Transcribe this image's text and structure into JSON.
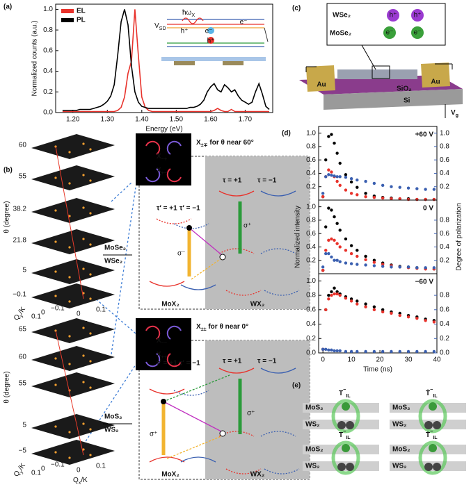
{
  "chart_data": [
    {
      "type": "line",
      "panel": "(a)",
      "xlabel": "Energy (eV)",
      "ylabel": "Normalized counts (a.u.)",
      "legend": "upper left",
      "xlim": [
        1.15,
        1.78
      ],
      "xticks": [
        {
          "value": 1.2,
          "label": "1.20"
        },
        {
          "value": 1.3,
          "label": "1.30"
        },
        {
          "value": 1.4,
          "label": "1.40"
        },
        {
          "value": 1.5,
          "label": "1.50"
        },
        {
          "value": 1.6,
          "label": "1.60"
        },
        {
          "value": 1.7,
          "label": "1.70"
        }
      ],
      "ylim": [
        0,
        1.05
      ],
      "yticks": [
        {
          "value": 0,
          "label": "0.0"
        },
        {
          "value": 0.2,
          "label": "0.2"
        },
        {
          "value": 0.4,
          "label": "0.4"
        },
        {
          "value": 0.6,
          "label": "0.6"
        },
        {
          "value": 0.8,
          "label": "0.8"
        },
        {
          "value": 1,
          "label": "1.0"
        }
      ],
      "x": [
        1.17,
        1.18,
        1.19,
        1.2,
        1.21,
        1.22,
        1.23,
        1.24,
        1.25,
        1.26,
        1.27,
        1.28,
        1.29,
        1.3,
        1.31,
        1.32,
        1.33,
        1.34,
        1.35,
        1.36,
        1.37,
        1.38,
        1.39,
        1.4,
        1.41,
        1.42,
        1.43,
        1.44,
        1.45,
        1.46,
        1.47,
        1.48,
        1.49,
        1.5,
        1.51,
        1.52,
        1.53,
        1.54,
        1.55,
        1.56,
        1.57,
        1.58,
        1.59,
        1.6,
        1.61,
        1.62,
        1.63,
        1.64,
        1.65,
        1.66,
        1.67,
        1.68,
        1.69,
        1.7,
        1.71,
        1.72,
        1.73,
        1.74,
        1.75,
        1.76,
        1.77
      ],
      "series": [
        {
          "name": "EL",
          "color": "#e8322b",
          "values": [
            0.01,
            0.01,
            0.01,
            0.01,
            0.01,
            0.01,
            0.01,
            0.01,
            0.01,
            0.01,
            0.01,
            0.01,
            0.01,
            0.01,
            0.01,
            0.01,
            0.02,
            0.05,
            0.15,
            0.38,
            0.5,
            1.0,
            0.55,
            0.15,
            0.05,
            0.02,
            0.01,
            0.01,
            0.01,
            0.01,
            0.01,
            0.01,
            0.01,
            0.01,
            0.01,
            0.01,
            0.01,
            0.01,
            0.01,
            0.01,
            0.01,
            0.01,
            0.01,
            0.01,
            0.02,
            0.04,
            0.02,
            0.01,
            0.01,
            0.03,
            0.01,
            0.01,
            0.01,
            0.01,
            0.01,
            0.01,
            0.01,
            0.01,
            0.01,
            0.01,
            0.01
          ]
        },
        {
          "name": "PL",
          "color": "#000000",
          "values": [
            0.02,
            0.02,
            0.02,
            0.02,
            0.02,
            0.03,
            0.03,
            0.03,
            0.03,
            0.04,
            0.05,
            0.06,
            0.08,
            0.11,
            0.16,
            0.27,
            0.55,
            0.88,
            1.0,
            0.85,
            0.45,
            0.2,
            0.1,
            0.06,
            0.05,
            0.04,
            0.04,
            0.04,
            0.04,
            0.04,
            0.04,
            0.04,
            0.04,
            0.04,
            0.04,
            0.04,
            0.04,
            0.05,
            0.05,
            0.06,
            0.08,
            0.12,
            0.2,
            0.25,
            0.28,
            0.22,
            0.2,
            0.27,
            0.24,
            0.2,
            0.22,
            0.16,
            0.12,
            0.1,
            0.08,
            0.1,
            0.2,
            0.28,
            0.18,
            0.06,
            0.03
          ]
        }
      ]
    },
    {
      "type": "scatter",
      "panel": "(d)",
      "annotation": "+60 V",
      "xlim": [
        -1.5,
        40
      ],
      "ylim": [
        0,
        1.1
      ],
      "y2lim": [
        0,
        1.1
      ],
      "y2_color": "#3a5fb0",
      "yticks": [
        {
          "value": 0.2,
          "label": "0.2"
        },
        {
          "value": 0.4,
          "label": "0.4"
        },
        {
          "value": 0.6,
          "label": "0.6"
        },
        {
          "value": 0.8,
          "label": "0.8"
        },
        {
          "value": 1,
          "label": "1.0"
        }
      ],
      "y2ticks": [
        {
          "value": 0.2,
          "label": "0.2"
        },
        {
          "value": 0.4,
          "label": "0.4"
        },
        {
          "value": 0.6,
          "label": "0.6"
        },
        {
          "value": 0.8,
          "label": "0.8"
        },
        {
          "value": 1,
          "label": "1.0"
        }
      ],
      "x": [
        0,
        1,
        2,
        3,
        4,
        5,
        6,
        8,
        10,
        12,
        15,
        18,
        21,
        24,
        27,
        30,
        33,
        36,
        39
      ],
      "series": [
        {
          "color": "#000000",
          "values": [
            0.05,
            0.6,
            0.95,
            0.98,
            0.85,
            0.7,
            0.55,
            0.38,
            0.27,
            0.19,
            0.1,
            0.06,
            0.04,
            0.03,
            0.02,
            0.02,
            0.01,
            0.01,
            0.01
          ]
        },
        {
          "color": "#e8322b",
          "values": [
            0.05,
            0.35,
            0.45,
            0.42,
            0.35,
            0.28,
            0.22,
            0.15,
            0.1,
            0.08,
            0.05,
            0.04,
            0.03,
            0.02,
            0.02,
            0.01,
            0.01,
            0.01,
            0.01
          ]
        },
        {
          "color": "#3a5fb0",
          "axis": "y2",
          "values": [
            0.1,
            0.35,
            0.38,
            0.37,
            0.36,
            0.35,
            0.35,
            0.34,
            0.32,
            0.3,
            0.28,
            0.25,
            0.22,
            0.2,
            0.19,
            0.18,
            0.17,
            0.16,
            0.16
          ]
        }
      ]
    },
    {
      "type": "scatter",
      "annotation": "0 V",
      "ylabel": "Normalized intensity",
      "y2label": "Degree of polarization",
      "xlim": [
        -1.5,
        40
      ],
      "ylim": [
        0,
        1.1
      ],
      "y2lim": [
        0,
        1.1
      ],
      "y2_color": "#3a5fb0",
      "yticks": [
        {
          "value": 0.2,
          "label": "0.2"
        },
        {
          "value": 0.4,
          "label": "0.4"
        },
        {
          "value": 0.6,
          "label": "0.6"
        },
        {
          "value": 0.8,
          "label": "0.8"
        },
        {
          "value": 1,
          "label": "1.0"
        }
      ],
      "y2ticks": [
        {
          "value": 0.2,
          "label": "0.2"
        },
        {
          "value": 0.4,
          "label": "0.4"
        },
        {
          "value": 0.6,
          "label": "0.6"
        },
        {
          "value": 0.8,
          "label": "0.8"
        }
      ],
      "x": [
        0,
        1,
        2,
        3,
        4,
        5,
        6,
        8,
        10,
        12,
        15,
        18,
        21,
        24,
        27,
        30,
        33,
        36,
        39
      ],
      "series": [
        {
          "color": "#000000",
          "values": [
            0.05,
            0.7,
            0.98,
            0.95,
            0.85,
            0.75,
            0.65,
            0.52,
            0.42,
            0.35,
            0.26,
            0.2,
            0.16,
            0.13,
            0.11,
            0.1,
            0.09,
            0.08,
            0.07
          ]
        },
        {
          "color": "#e8322b",
          "values": [
            0.05,
            0.35,
            0.5,
            0.52,
            0.5,
            0.45,
            0.4,
            0.35,
            0.3,
            0.26,
            0.21,
            0.17,
            0.14,
            0.12,
            0.1,
            0.09,
            0.08,
            0.07,
            0.07
          ]
        },
        {
          "color": "#3a5fb0",
          "axis": "y2",
          "values": [
            0.1,
            0.3,
            0.3,
            0.25,
            0.2,
            0.2,
            0.18,
            0.16,
            0.15,
            0.14,
            0.13,
            0.12,
            0.11,
            0.1,
            0.1,
            0.1,
            0.09,
            0.09,
            0.09
          ]
        }
      ]
    },
    {
      "type": "scatter",
      "annotation": "−60 V",
      "xlabel": "Time (ns)",
      "xlim": [
        -1.5,
        40
      ],
      "ylim": [
        0,
        1.1
      ],
      "y2lim": [
        0,
        1.1
      ],
      "y2_color": "#3a5fb0",
      "xticks": [
        0,
        10,
        20,
        30,
        40
      ],
      "yticks": [
        {
          "value": 0,
          "label": "0.0"
        },
        {
          "value": 0.2,
          "label": "0.2"
        },
        {
          "value": 0.4,
          "label": "0.4"
        },
        {
          "value": 0.6,
          "label": "0.6"
        },
        {
          "value": 0.8,
          "label": "0.8"
        },
        {
          "value": 1,
          "label": "1.0"
        }
      ],
      "y2ticks": [
        {
          "value": 0,
          "label": "0.0"
        },
        {
          "value": 0.2,
          "label": "0.2"
        },
        {
          "value": 0.4,
          "label": "0.4"
        },
        {
          "value": 0.6,
          "label": "0.6"
        },
        {
          "value": 0.8,
          "label": "0.8"
        }
      ],
      "x": [
        0,
        1,
        2,
        3,
        4,
        5,
        6,
        8,
        10,
        12,
        15,
        18,
        21,
        24,
        27,
        30,
        33,
        36,
        39
      ],
      "series": [
        {
          "color": "#000000",
          "values": [
            0.05,
            0.6,
            0.8,
            0.85,
            0.9,
            0.85,
            0.82,
            0.78,
            0.75,
            0.72,
            0.68,
            0.64,
            0.6,
            0.57,
            0.55,
            0.52,
            0.5,
            0.47,
            0.45
          ]
        },
        {
          "color": "#e8322b",
          "values": [
            0.05,
            0.6,
            0.75,
            0.8,
            0.82,
            0.82,
            0.8,
            0.76,
            0.72,
            0.68,
            0.64,
            0.6,
            0.57,
            0.55,
            0.52,
            0.5,
            0.48,
            0.45,
            0.43
          ]
        },
        {
          "color": "#3a5fb0",
          "axis": "y2",
          "values": [
            0.05,
            0.05,
            0.04,
            0.04,
            0.03,
            0.03,
            0.03,
            0.02,
            0.02,
            0.02,
            0.02,
            0.02,
            0.02,
            0.02,
            0.02,
            0.02,
            0.02,
            0.02,
            0.02
          ]
        }
      ]
    }
  ],
  "inset_a": {
    "vsd": {
      "main": "V",
      "sub": "SD"
    },
    "photon": {
      "main": "ħω",
      "sub": "X"
    },
    "electrons": [
      "e⁻",
      "e⁻"
    ],
    "holes": [
      "h⁺",
      "h⁺"
    ]
  },
  "panel_b": {
    "label": "(b)",
    "upper": {
      "layers": [
        "60",
        "55",
        "38.2",
        "21.8",
        "5",
        "−0.1"
      ],
      "axis": "θ (degree)",
      "top": "MoSe₂",
      "bottom": "WSe₂",
      "qy": {
        "main": "Q",
        "sub": "y",
        "rest": "/K"
      },
      "qx": {
        "main": "Q",
        "sub": "x",
        "rest": "/K"
      },
      "qy_ticks": [
        "0.1",
        "0",
        "−0.1"
      ],
      "qx_ticks": [
        "0",
        "0.1"
      ]
    },
    "lower": {
      "layers": [
        "65",
        "60",
        "55",
        "5",
        "−5"
      ],
      "axis": "θ (degree)",
      "top": "MoS₂",
      "bottom": "WS₂",
      "qy": {
        "main": "Q",
        "sub": "y",
        "rest": "/K"
      },
      "qx": {
        "main": "Q",
        "sub": "x",
        "rest": "/K"
      },
      "qy_ticks": [
        "0.1",
        "0",
        "−0.1"
      ],
      "qx_ticks": [
        "0",
        "0.1"
      ]
    },
    "diagram_top": {
      "title": {
        "main": "X",
        "sub": "±∓",
        "rest": " for θ near 60°"
      },
      "inset": [
        {
          "main": "X",
          "sub": "−+"
        },
        {
          "main": "X",
          "sub": "+−"
        }
      ],
      "tau": [
        "τ′ = +1",
        "τ′ = −1",
        "τ = +1",
        "τ = −1"
      ],
      "sigma": [
        "σ⁻",
        "σ⁺"
      ],
      "layers": [
        "MoX₂",
        "WX₂"
      ]
    },
    "diagram_bottom": {
      "title": {
        "main": "X",
        "sub": "±±",
        "rest": " for θ near 0°"
      },
      "inset": [
        {
          "main": "X",
          "sub": "−−"
        },
        {
          "main": "X",
          "sub": "++"
        }
      ],
      "tau": [
        "τ′ = +1",
        "τ′ = −1",
        "τ = +1",
        "τ = −1"
      ],
      "sigma": [
        "σ⁺",
        "σ⁺"
      ],
      "layers": [
        "MoX₂",
        "WX₂"
      ]
    }
  },
  "panel_c": {
    "label": "(c)",
    "top": "WSe₂",
    "bottom": "MoSe₂",
    "holes": [
      "h⁺",
      "h⁺"
    ],
    "electrons": [
      "e⁻",
      "e⁻"
    ],
    "contacts": [
      "Au",
      "Au"
    ],
    "oxide": "SiO₂",
    "substrate": "Si",
    "gate": {
      "main": "V",
      "sub": "g"
    }
  },
  "panel_e": {
    "label": "(e)",
    "cells": [
      {
        "state": {
          "main": "T",
          "sup": "−",
          "sub": "IL"
        },
        "top": "MoS₂",
        "bottom": "WS₂"
      },
      {
        "state": {
          "main": "Ṫ",
          "sup": "−",
          "sub": "IL"
        },
        "top": "MoS₂",
        "bottom": "WS₂"
      },
      {
        "state": {
          "main": "T",
          "sup": "−",
          "sub": "IL"
        },
        "top": "MoS₂",
        "bottom": "WS₂"
      },
      {
        "state": {
          "main": "Ṫ",
          "sup": "−",
          "sub": "IL"
        },
        "top": "MoS₂",
        "bottom": "WS₂"
      }
    ]
  }
}
